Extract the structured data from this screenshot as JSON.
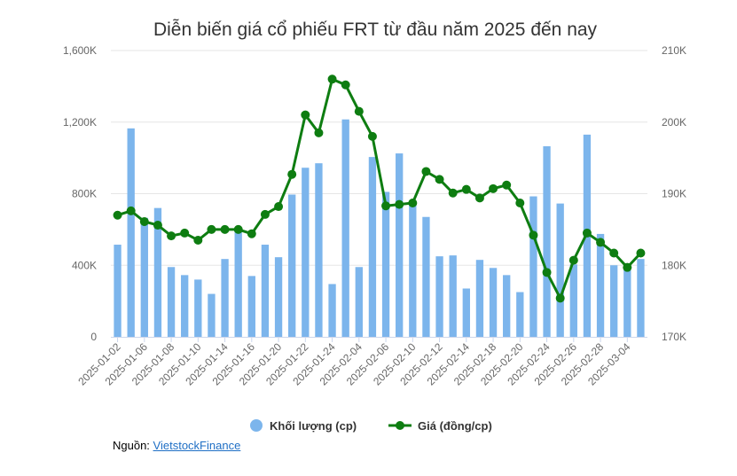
{
  "chart_data": {
    "type": "bar+line",
    "title": "Diễn biến giá cổ phiếu FRT từ đầu năm 2025 đến nay",
    "dates": [
      "2025-01-02",
      "2025-01-03",
      "2025-01-06",
      "2025-01-07",
      "2025-01-08",
      "2025-01-09",
      "2025-01-10",
      "2025-01-13",
      "2025-01-14",
      "2025-01-15",
      "2025-01-16",
      "2025-01-17",
      "2025-01-20",
      "2025-01-21",
      "2025-01-22",
      "2025-01-23",
      "2025-01-24",
      "2025-02-03",
      "2025-02-04",
      "2025-02-05",
      "2025-02-06",
      "2025-02-07",
      "2025-02-10",
      "2025-02-11",
      "2025-02-12",
      "2025-02-13",
      "2025-02-14",
      "2025-02-17",
      "2025-02-18",
      "2025-02-19",
      "2025-02-20",
      "2025-02-21",
      "2025-02-24",
      "2025-02-25",
      "2025-02-26",
      "2025-02-27",
      "2025-02-28",
      "2025-03-03",
      "2025-03-04",
      "2025-03-05"
    ],
    "x_tick_labels": [
      "2025-01-02",
      "2025-01-06",
      "2025-01-08",
      "2025-01-10",
      "2025-01-14",
      "2025-01-16",
      "2025-01-20",
      "2025-01-22",
      "2025-01-24",
      "2025-02-04",
      "2025-02-06",
      "2025-02-10",
      "2025-02-12",
      "2025-02-14",
      "2025-02-18",
      "2025-02-20",
      "2025-02-24",
      "2025-02-26",
      "2025-02-28",
      "2025-03-04"
    ],
    "series": [
      {
        "name": "Khối lượng (cp)",
        "type": "bar",
        "axis": "left",
        "color": "#7cb5ec",
        "values": [
          515000,
          1165000,
          665000,
          720000,
          390000,
          345000,
          320000,
          240000,
          435000,
          600000,
          340000,
          515000,
          445000,
          795000,
          945000,
          970000,
          295000,
          1215000,
          390000,
          1005000,
          810000,
          1025000,
          735000,
          670000,
          450000,
          455000,
          270000,
          430000,
          385000,
          345000,
          250000,
          785000,
          1065000,
          745000,
          405000,
          1130000,
          575000,
          400000,
          395000,
          435000
        ]
      },
      {
        "name": "Giá (đồng/cp)",
        "type": "line",
        "axis": "right",
        "color": "#0e7d11",
        "values": [
          187000,
          187600,
          186100,
          185600,
          184100,
          184500,
          183500,
          185000,
          185000,
          185000,
          184400,
          187100,
          188200,
          192700,
          201000,
          198500,
          206000,
          205200,
          201500,
          198000,
          188300,
          188500,
          188700,
          193100,
          192000,
          190100,
          190600,
          189400,
          190700,
          191200,
          188700,
          184200,
          179000,
          175400,
          180700,
          184500,
          183200,
          181700,
          179700,
          181700
        ]
      }
    ],
    "y_left": {
      "min": 0,
      "max": 1600000,
      "ticks": [
        "0",
        "400K",
        "800K",
        "1,200K",
        "1,600K"
      ]
    },
    "y_right": {
      "min": 170000,
      "max": 210000,
      "ticks": [
        "170K",
        "180K",
        "190K",
        "200K",
        "210K"
      ]
    },
    "grid": true,
    "legend_position": "bottom-center"
  },
  "legend": {
    "bar_label": "Khối lượng (cp)",
    "line_label": "Giá (đồng/cp)"
  },
  "source": {
    "prefix": "Nguồn: ",
    "link_text": "VietstockFinance"
  }
}
